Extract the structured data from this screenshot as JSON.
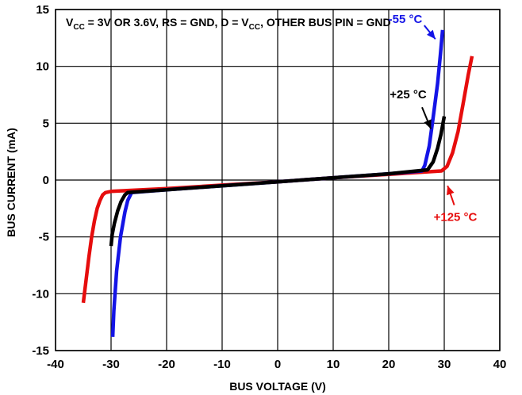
{
  "chart_data": {
    "type": "line",
    "xlabel": "BUS VOLTAGE (V)",
    "ylabel": "BUS CURRENT (mA)",
    "xlim": [
      -40,
      40
    ],
    "ylim": [
      -15,
      15
    ],
    "x_ticks": [
      "-40",
      "-30",
      "-20",
      "-10",
      "0",
      "10",
      "20",
      "30",
      "40"
    ],
    "y_ticks": [
      "15",
      "10",
      "5",
      "0",
      "-5",
      "-10",
      "-15"
    ],
    "grid": true,
    "conditions": {
      "vcc_prefix": "V",
      "vcc_sub": "CC",
      "vcc_value": " = 3V OR 3.6V, RS = GND, D = V",
      "d_sub": "CC",
      "rest": ", OTHER BUS PIN = GND"
    },
    "series": [
      {
        "name": "-55 °C",
        "color": "#1414e6",
        "x": [
          -29.7,
          -29.5,
          -29.0,
          -28.3,
          -27.5,
          -27.0,
          -26.5,
          -26.3,
          -20,
          -10,
          0,
          10,
          20,
          26.0,
          26.5,
          27.3,
          28.0,
          28.8,
          29.3,
          29.7
        ],
        "y": [
          -13.8,
          -11.5,
          -8.0,
          -5.0,
          -2.8,
          -1.8,
          -1.3,
          -1.1,
          -0.85,
          -0.5,
          -0.15,
          0.2,
          0.55,
          0.8,
          1.3,
          3.0,
          5.5,
          8.5,
          11.0,
          13.2
        ]
      },
      {
        "name": "+25 °C",
        "color": "#000000",
        "x": [
          -30.0,
          -29.8,
          -29.4,
          -28.8,
          -28.2,
          -27.5,
          -27.0,
          -20,
          -10,
          0,
          10,
          20,
          27.0,
          28.0,
          28.8,
          29.4,
          30.0
        ],
        "y": [
          -5.8,
          -4.8,
          -3.8,
          -2.7,
          -1.9,
          -1.3,
          -1.1,
          -0.85,
          -0.5,
          -0.15,
          0.2,
          0.55,
          0.9,
          1.6,
          2.8,
          4.0,
          5.6
        ]
      },
      {
        "name": "+125 °C",
        "color": "#e60d0d",
        "x": [
          -35.0,
          -34.5,
          -34.0,
          -33.5,
          -33.0,
          -32.5,
          -32.0,
          -31.5,
          -31.0,
          -30.0,
          -20,
          -10,
          0,
          10,
          20,
          29.5,
          30.5,
          31.5,
          32.5,
          33.5,
          34.3,
          35.0
        ],
        "y": [
          -10.8,
          -8.8,
          -6.8,
          -5.0,
          -3.6,
          -2.5,
          -1.8,
          -1.3,
          -1.1,
          -1.0,
          -0.75,
          -0.45,
          -0.15,
          0.2,
          0.5,
          0.8,
          1.2,
          2.4,
          4.3,
          7.0,
          9.2,
          10.9
        ]
      }
    ],
    "annotations": [
      {
        "series": 0,
        "text": "-55 °C",
        "arrow_from": [
          28.4,
          12.4
        ],
        "arrow_to": [
          26.4,
          13.6
        ],
        "label_at": [
          23.0,
          13.8
        ]
      },
      {
        "series": 1,
        "text": "+25 °C",
        "arrow_from": [
          27.6,
          4.5
        ],
        "arrow_to": [
          26.0,
          6.4
        ],
        "label_at": [
          23.5,
          7.2
        ]
      },
      {
        "series": 2,
        "text": "+125 °C",
        "arrow_from": [
          30.6,
          -0.5
        ],
        "arrow_to": [
          31.8,
          -2.2
        ],
        "label_at": [
          32.0,
          -3.6
        ]
      }
    ]
  }
}
